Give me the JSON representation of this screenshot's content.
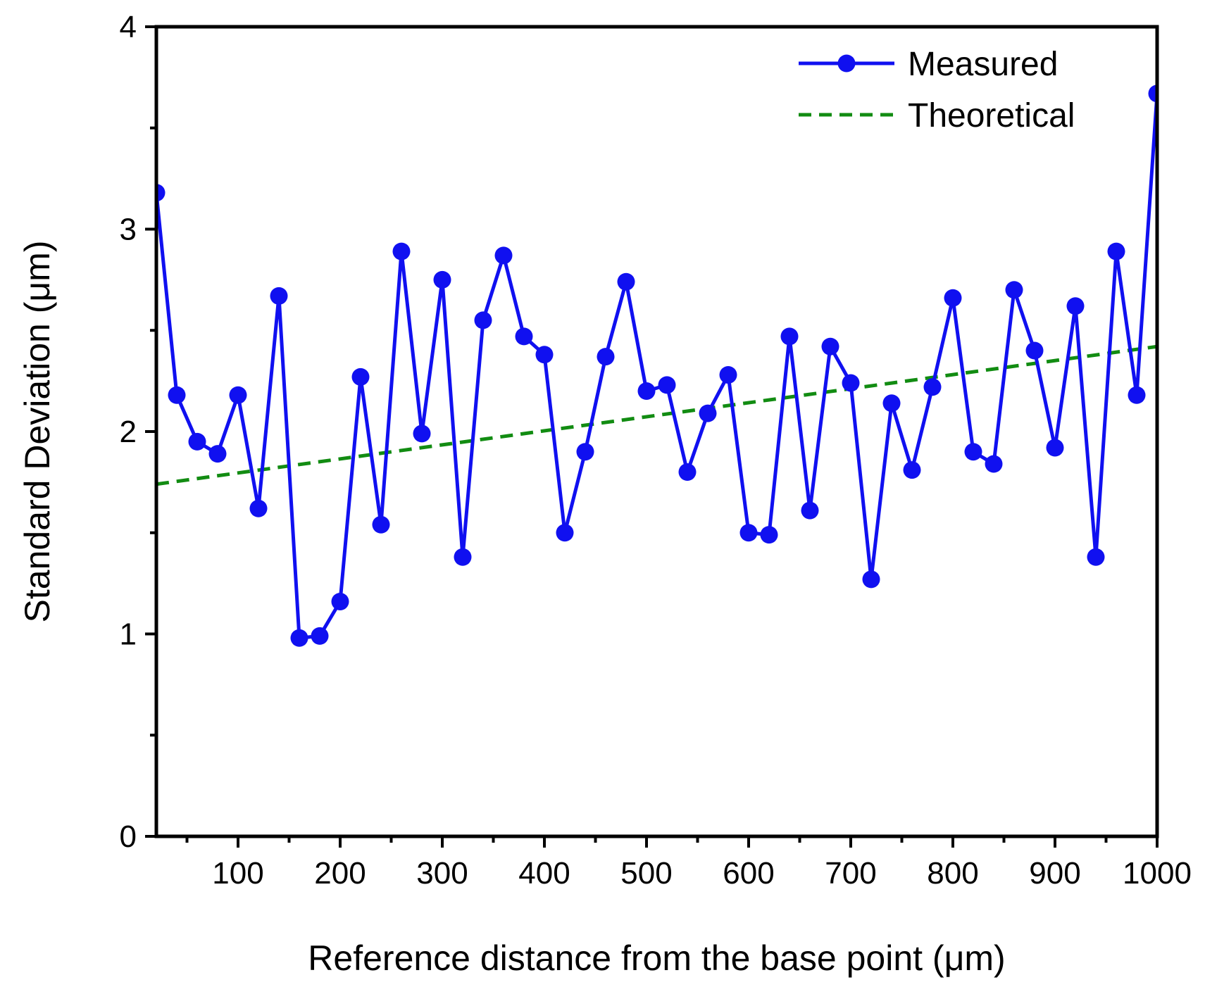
{
  "chart_data": {
    "type": "line",
    "xlabel": "Reference distance from the base point (μm)",
    "ylabel": "Standard Deviation (μm)",
    "xlim": [
      20,
      1000
    ],
    "ylim": [
      0,
      4
    ],
    "x_ticks": [
      100,
      200,
      300,
      400,
      500,
      600,
      700,
      800,
      900,
      1000
    ],
    "x_tick_labels": [
      "100",
      "200",
      "300",
      "400",
      "500",
      "600",
      "700",
      "800",
      "900",
      "1000"
    ],
    "y_ticks": [
      0,
      1,
      2,
      3,
      4
    ],
    "y_tick_labels": [
      "0",
      "1",
      "2",
      "3",
      "4"
    ],
    "legend_position": "top-right",
    "series": [
      {
        "name": "Measured",
        "style": "solid-line-with-circle-markers",
        "color": "#1010f0",
        "x": [
          20,
          40,
          60,
          80,
          100,
          120,
          140,
          160,
          180,
          200,
          220,
          240,
          260,
          280,
          300,
          320,
          340,
          360,
          380,
          400,
          420,
          440,
          460,
          480,
          500,
          520,
          540,
          560,
          580,
          600,
          620,
          640,
          660,
          680,
          700,
          720,
          740,
          760,
          780,
          800,
          820,
          840,
          860,
          880,
          900,
          920,
          940,
          960,
          980,
          1000
        ],
        "values": [
          3.18,
          2.18,
          1.95,
          1.89,
          2.18,
          1.62,
          2.67,
          0.98,
          0.99,
          1.16,
          2.27,
          1.54,
          2.89,
          1.99,
          2.75,
          1.38,
          2.55,
          2.87,
          2.47,
          2.38,
          1.5,
          1.9,
          2.37,
          2.74,
          2.2,
          2.23,
          1.8,
          2.09,
          2.28,
          1.5,
          1.49,
          2.47,
          1.61,
          2.42,
          2.24,
          1.27,
          2.14,
          1.81,
          2.22,
          2.66,
          1.9,
          1.84,
          2.7,
          2.4,
          1.92,
          2.62,
          1.38,
          2.89,
          2.18,
          3.67
        ]
      },
      {
        "name": "Theoretical",
        "style": "dashed-line",
        "color": "#128c12",
        "x": [
          20,
          1000
        ],
        "values": [
          1.74,
          2.42
        ]
      }
    ]
  }
}
